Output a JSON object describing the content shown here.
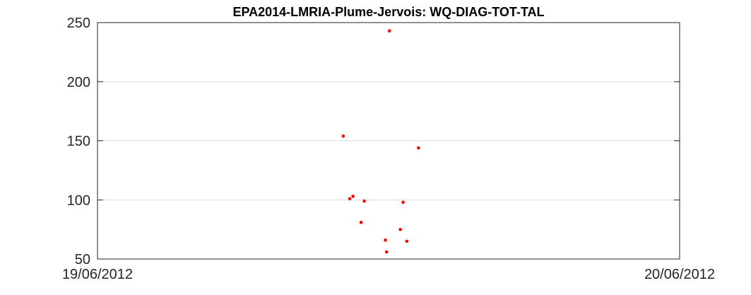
{
  "chart_data": {
    "type": "scatter",
    "title": "EPA2014-LMRIA-Plume-Jervois: WQ-DIAG-TOT-TAL",
    "xlabel": "",
    "ylabel": "",
    "xlim": [
      "19/06/2012",
      "20/06/2012"
    ],
    "ylim": [
      50,
      250
    ],
    "x_tick_labels": [
      "19/06/2012",
      "20/06/2012"
    ],
    "y_ticks": [
      50,
      100,
      150,
      200,
      250
    ],
    "grid": "horizontal",
    "legend": "none",
    "marker_color": "#ff0000",
    "series": [
      {
        "x": [
          "19/06/2012 10:08",
          "19/06/2012 10:24",
          "19/06/2012 10:32",
          "19/06/2012 10:52",
          "19/06/2012 11:00",
          "19/06/2012 11:52",
          "19/06/2012 11:55",
          "19/06/2012 12:02",
          "19/06/2012 12:29",
          "19/06/2012 12:36",
          "19/06/2012 12:45",
          "19/06/2012 13:14"
        ],
        "y": [
          154,
          101,
          103,
          81,
          99,
          66,
          56,
          243,
          75,
          98,
          65,
          144
        ]
      }
    ]
  }
}
